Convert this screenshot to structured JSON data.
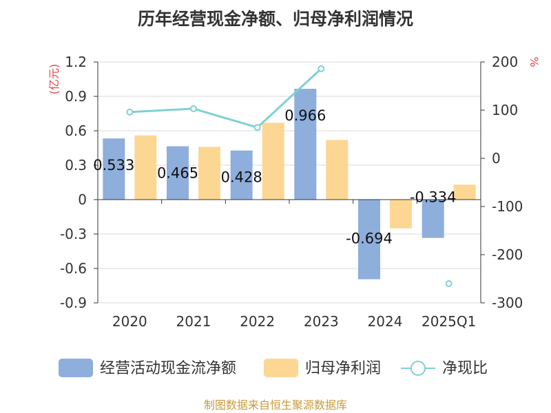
{
  "chart_data": {
    "type": "bar",
    "title": "历年经营现金净额、归母净利润情况",
    "categories": [
      "2020",
      "2021",
      "2022",
      "2023",
      "2024",
      "2025Q1"
    ],
    "left_axis": {
      "unit": "(亿元)",
      "ylim": [
        -0.9,
        1.2
      ],
      "ticks": [
        "1.2",
        "0.9",
        "0.6",
        "0.3",
        "0",
        "-0.3",
        "-0.6",
        "-0.9"
      ],
      "tick_values": [
        1.2,
        0.9,
        0.6,
        0.3,
        0,
        -0.3,
        -0.6,
        -0.9
      ]
    },
    "right_axis": {
      "unit": "%",
      "ylim": [
        -300,
        200
      ],
      "ticks": [
        "200",
        "100",
        "0",
        "-100",
        "-200",
        "-300"
      ],
      "tick_values": [
        200,
        100,
        0,
        -100,
        -200,
        -300
      ]
    },
    "series": [
      {
        "name": "经营活动现金流净额",
        "type": "bar",
        "axis": "left",
        "color": "#8eaedc",
        "values": [
          0.533,
          0.465,
          0.428,
          0.966,
          -0.694,
          -0.334
        ],
        "labels": [
          "0.533",
          "0.465",
          "0.428",
          "0.966",
          "-0.694",
          "-0.334"
        ]
      },
      {
        "name": "归母净利润",
        "type": "bar",
        "axis": "left",
        "color": "#fcd793",
        "values": [
          0.56,
          0.46,
          0.67,
          0.52,
          -0.25,
          0.13
        ]
      },
      {
        "name": "净现比",
        "type": "line",
        "axis": "right",
        "color": "#7fd0d4",
        "values": [
          96,
          103,
          64,
          186,
          null,
          -260
        ]
      }
    ],
    "grid": true,
    "legend_position": "bottom"
  },
  "source": "制图数据来自恒生聚源数据库"
}
